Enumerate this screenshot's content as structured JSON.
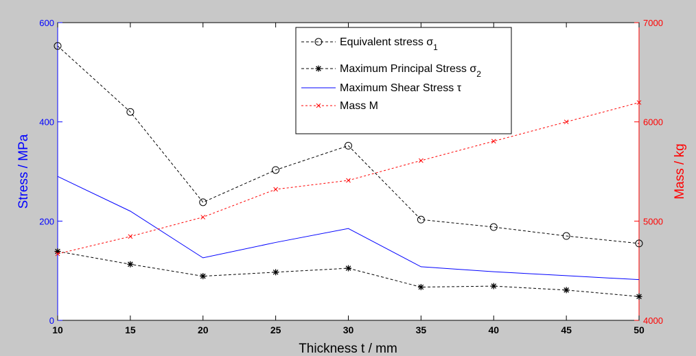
{
  "chart_data": {
    "type": "line",
    "xlabel": "Thickness  t / mm",
    "ylabel_left": "Stress / MPa",
    "ylabel_right": "Mass / kg",
    "x": [
      10,
      15,
      20,
      25,
      30,
      35,
      40,
      45,
      50
    ],
    "xlim": [
      10,
      50
    ],
    "xticks": [
      10,
      15,
      20,
      25,
      30,
      35,
      40,
      45,
      50
    ],
    "ylim_left": [
      0,
      600
    ],
    "yticks_left": [
      0,
      200,
      400,
      600
    ],
    "ylim_right": [
      4000,
      7000
    ],
    "yticks_right": [
      4000,
      5000,
      6000,
      7000
    ],
    "legend_position": "top-center",
    "grid": false,
    "colors": {
      "left_axis": "#0000ff",
      "right_axis": "#ff0000",
      "black": "#000000",
      "shear": "#0000ff",
      "mass": "#ff0000"
    },
    "series": [
      {
        "name": "Equivalent stress σ",
        "subscript": "1",
        "axis": "left",
        "color": "#000000",
        "dash": "dashed",
        "marker": "circle",
        "values": [
          553,
          420,
          238,
          303,
          352,
          203,
          188,
          170,
          155
        ]
      },
      {
        "name": "Maximum Principal Stress σ",
        "subscript": "2",
        "axis": "left",
        "color": "#000000",
        "dash": "dashed",
        "marker": "star",
        "values": [
          139,
          113,
          89,
          97,
          105,
          67,
          69,
          61,
          48
        ]
      },
      {
        "name": "Maximum Shear Stress τ",
        "subscript": "",
        "axis": "left",
        "color": "#0000ff",
        "dash": "solid",
        "marker": "none",
        "values": [
          290,
          220,
          126,
          157,
          185,
          108,
          98,
          90,
          82
        ]
      },
      {
        "name": "Mass M",
        "subscript": "",
        "axis": "right",
        "color": "#ff0000",
        "dash": "dotted",
        "marker": "x",
        "values": [
          4670,
          4845,
          5040,
          5320,
          5410,
          5610,
          5805,
          6000,
          6195
        ]
      }
    ]
  }
}
